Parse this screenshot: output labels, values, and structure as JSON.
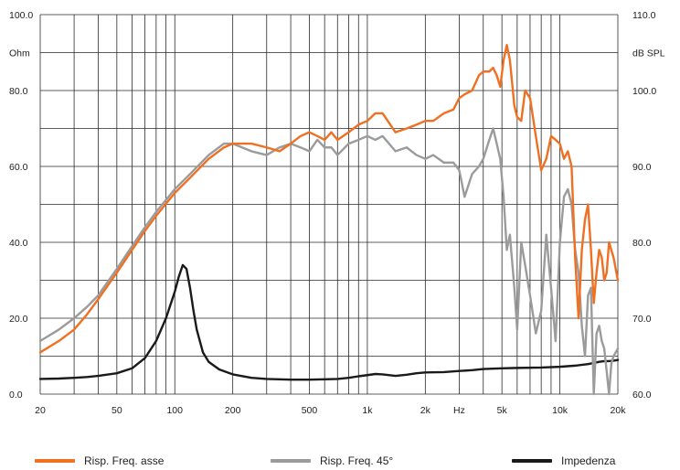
{
  "chart_data": {
    "type": "line",
    "x_scale": "log",
    "xlim": [
      20,
      20000
    ],
    "ylim_left": [
      0,
      100
    ],
    "ylim_right": [
      60,
      110
    ],
    "grid": true,
    "legend_position": "bottom",
    "x_tick_labels": [
      "20",
      "50",
      "100",
      "200",
      "500",
      "1k",
      "2k",
      "Hz",
      "5k",
      "10k",
      "20k"
    ],
    "x_tick_values": [
      20,
      50,
      100,
      200,
      500,
      1000,
      2000,
      3000,
      5000,
      10000,
      20000
    ],
    "left_tick_labels": [
      "0.0",
      "20.0",
      "40.0",
      "60.0",
      "80.0",
      "Ohm",
      "100.0"
    ],
    "left_tick_values": [
      0,
      20,
      40,
      60,
      80,
      90,
      100
    ],
    "right_tick_labels": [
      "60.0",
      "70.0",
      "80.0",
      "90.0",
      "100.0",
      "dB SPL",
      "110.0"
    ],
    "right_tick_values": [
      60,
      70,
      80,
      90,
      100,
      105,
      110
    ],
    "ylabel_left": "Ohm",
    "ylabel_right": "dB SPL",
    "xlabel": "Hz",
    "series": [
      {
        "name": "Risp. Freq. asse",
        "color": "#f07022",
        "axis": "right",
        "x": [
          20,
          25,
          30,
          35,
          40,
          50,
          60,
          70,
          80,
          100,
          120,
          150,
          180,
          200,
          250,
          300,
          350,
          400,
          450,
          500,
          550,
          600,
          650,
          700,
          800,
          900,
          1000,
          1100,
          1200,
          1400,
          1600,
          1800,
          2000,
          2200,
          2500,
          2800,
          3000,
          3200,
          3500,
          3800,
          4000,
          4300,
          4500,
          4700,
          4900,
          5100,
          5300,
          5500,
          5800,
          6000,
          6300,
          6600,
          7000,
          7500,
          8000,
          8500,
          9000,
          9500,
          10000,
          10500,
          11000,
          11500,
          12000,
          12500,
          13000,
          13500,
          14000,
          14500,
          15000,
          15500,
          16000,
          16500,
          17000,
          17500,
          18000,
          19000,
          20000
        ],
        "y": [
          65.5,
          67,
          68.5,
          70.5,
          72.5,
          76,
          79,
          81.5,
          83.5,
          86.5,
          88.5,
          91,
          92.5,
          93,
          93,
          92.5,
          92,
          93,
          94,
          94.5,
          94,
          93.5,
          94.5,
          93.5,
          94.5,
          95.5,
          96,
          97,
          97,
          94.5,
          95,
          95.5,
          96,
          96,
          97,
          97.5,
          99,
          99.5,
          100,
          102,
          102.5,
          102.5,
          103,
          102,
          100.5,
          104,
          106,
          104,
          98,
          96.5,
          96,
          100,
          99,
          94,
          89.5,
          91,
          94,
          93.5,
          93,
          91,
          92,
          90,
          78,
          70,
          79,
          83,
          85,
          79,
          72,
          76,
          79,
          78,
          75,
          76,
          80,
          78,
          75
        ]
      },
      {
        "name": "Risp. Freq. 45°",
        "color": "#9b9b9b",
        "axis": "right",
        "x": [
          20,
          25,
          30,
          35,
          40,
          50,
          60,
          70,
          80,
          100,
          120,
          150,
          180,
          200,
          250,
          300,
          350,
          400,
          450,
          500,
          550,
          600,
          650,
          700,
          800,
          900,
          1000,
          1100,
          1200,
          1400,
          1600,
          1800,
          2000,
          2200,
          2500,
          2800,
          3000,
          3200,
          3500,
          3800,
          4000,
          4300,
          4500,
          4700,
          4900,
          5100,
          5300,
          5500,
          5800,
          6000,
          6300,
          6600,
          7000,
          7500,
          8000,
          8500,
          9000,
          9500,
          10000,
          10500,
          11000,
          11500,
          12000,
          12500,
          13000,
          13500,
          14000,
          14500,
          15000,
          15500,
          16000,
          16500,
          17000,
          17500,
          18000,
          18500,
          19000,
          20000
        ],
        "y": [
          67,
          68.5,
          70,
          71.5,
          73,
          76.5,
          79.5,
          82,
          84,
          87,
          89,
          91.5,
          93,
          93,
          92,
          91.5,
          92.5,
          93,
          92.5,
          92,
          93.5,
          92.5,
          92.5,
          91.5,
          93,
          93.5,
          94,
          93.5,
          94,
          92,
          92.5,
          91.5,
          91,
          91.5,
          90.5,
          90.5,
          89.5,
          86,
          89,
          90,
          91,
          93.5,
          95,
          93,
          91,
          86,
          79,
          81,
          74,
          68.5,
          80,
          77,
          73,
          68,
          71,
          81,
          74,
          67,
          80,
          86,
          87,
          85,
          79,
          76,
          69,
          65,
          73,
          74,
          60,
          68,
          69,
          67,
          66,
          63,
          60,
          64,
          65,
          66
        ]
      },
      {
        "name": "Impedenza",
        "color": "#1a1a1a",
        "axis": "left",
        "x": [
          20,
          25,
          30,
          35,
          40,
          50,
          60,
          70,
          80,
          90,
          100,
          105,
          110,
          115,
          120,
          125,
          130,
          140,
          150,
          170,
          200,
          250,
          300,
          400,
          500,
          600,
          700,
          800,
          900,
          1000,
          1100,
          1200,
          1400,
          1600,
          1800,
          2000,
          2500,
          3000,
          3500,
          4000,
          5000,
          6000,
          8000,
          10000,
          12000,
          14000,
          15000,
          16000,
          17000,
          18000,
          19000,
          20000
        ],
        "y": [
          4,
          4.1,
          4.3,
          4.5,
          4.8,
          5.5,
          6.8,
          9.5,
          14,
          20,
          27,
          31,
          34,
          33,
          28,
          22,
          17,
          11,
          8.5,
          6.5,
          5.2,
          4.3,
          4,
          3.8,
          3.8,
          3.9,
          4,
          4.3,
          4.7,
          5,
          5.3,
          5.2,
          4.8,
          5.1,
          5.5,
          5.7,
          5.8,
          6.1,
          6.3,
          6.6,
          6.8,
          6.9,
          7,
          7.2,
          7.5,
          7.9,
          8.2,
          8.5,
          8.7,
          8.7,
          8.8,
          9
        ]
      }
    ]
  }
}
